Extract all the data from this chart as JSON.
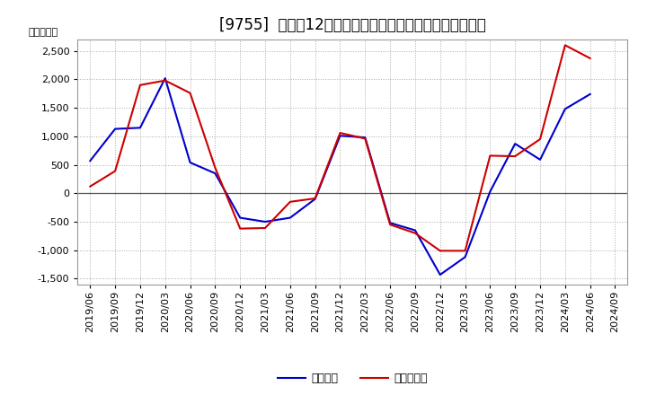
{
  "title": "[9755]  利益だ12か月移動合計の対前年同期増減額の推移",
  "ylabel": "（百万円）",
  "background_color": "#ffffff",
  "plot_bg_color": "#ffffff",
  "grid_color": "#aaaaaa",
  "x_labels": [
    "2019/06",
    "2019/09",
    "2019/12",
    "2020/03",
    "2020/06",
    "2020/09",
    "2020/12",
    "2021/03",
    "2021/06",
    "2021/09",
    "2021/12",
    "2022/03",
    "2022/06",
    "2022/09",
    "2022/12",
    "2023/03",
    "2023/06",
    "2023/09",
    "2023/12",
    "2024/03",
    "2024/06",
    "2024/09"
  ],
  "keijo_rieki": [
    570,
    1130,
    1150,
    2020,
    540,
    350,
    -430,
    -500,
    -430,
    -100,
    1010,
    980,
    -520,
    -650,
    -1430,
    -1120,
    30,
    870,
    590,
    1480,
    1740,
    null
  ],
  "touki_junrieki": [
    120,
    390,
    1900,
    1980,
    1760,
    450,
    -620,
    -610,
    -150,
    -90,
    1060,
    960,
    -550,
    -700,
    -1010,
    -1010,
    660,
    650,
    950,
    2600,
    2370,
    null
  ],
  "ylim": [
    -1600,
    2700
  ],
  "yticks": [
    -1500,
    -1000,
    -500,
    0,
    500,
    1000,
    1500,
    2000,
    2500
  ],
  "line_color_keijo": "#0000cc",
  "line_color_touki": "#cc0000",
  "line_width": 1.5,
  "legend_keijo": "経常利益",
  "legend_touki": "当期純利益",
  "title_fontsize": 12,
  "tick_fontsize": 8,
  "ylabel_fontsize": 8
}
